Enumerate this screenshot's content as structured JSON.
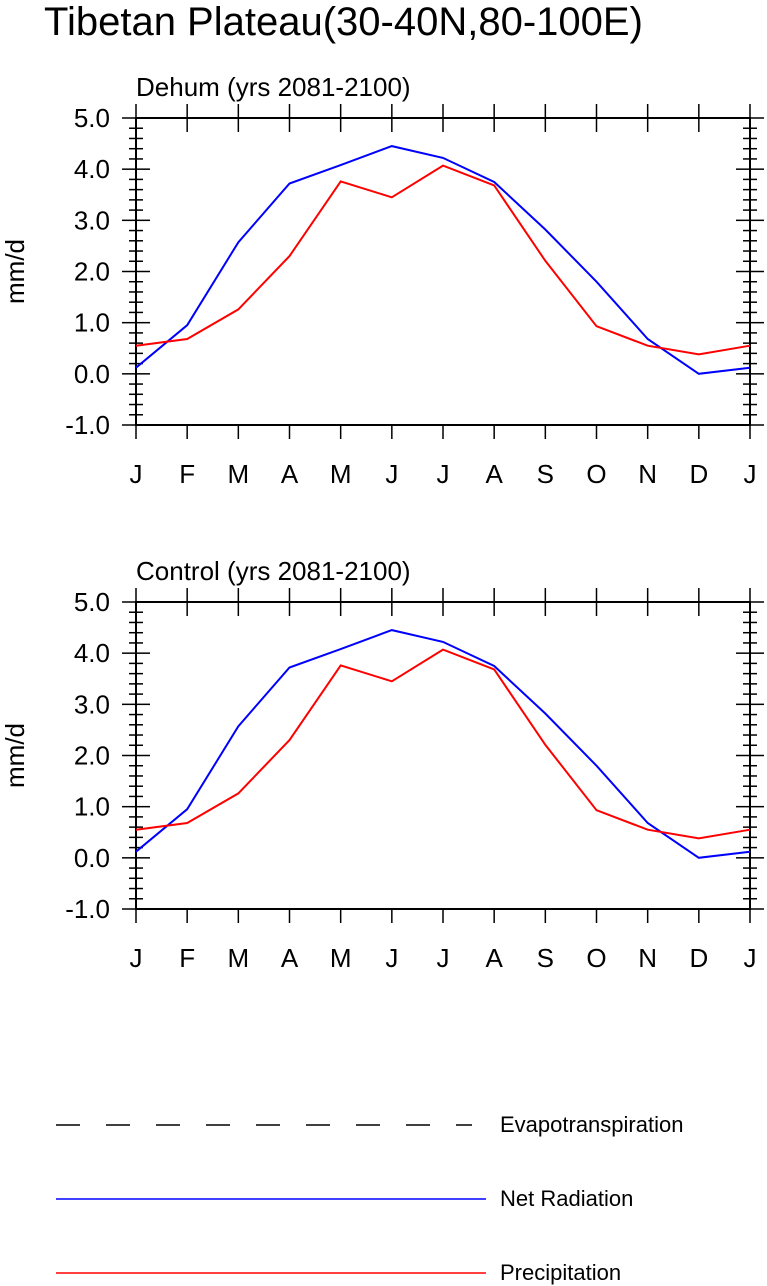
{
  "title": "Tibetan Plateau(30-40N,80-100E)",
  "colors": {
    "net_radiation": "#0000ff",
    "precipitation": "#ff0000",
    "evapotranspiration": "#000000",
    "axis": "#000000"
  },
  "legend": {
    "items": [
      {
        "label": "Evapotranspiration",
        "style": "dashed",
        "color": "#000000"
      },
      {
        "label": "Net Radiation",
        "style": "solid",
        "color": "#0000ff"
      },
      {
        "label": "Precipitation",
        "style": "solid",
        "color": "#ff0000"
      }
    ]
  },
  "chart_data": [
    {
      "type": "line",
      "subtitle": "Dehum (yrs 2081-2100)",
      "ylabel": "mm/d",
      "ylim": [
        -1.0,
        5.0
      ],
      "yticks": [
        "-1.0",
        "0.0",
        "1.0",
        "2.0",
        "3.0",
        "4.0",
        "5.0"
      ],
      "categories": [
        "J",
        "F",
        "M",
        "A",
        "M",
        "J",
        "J",
        "A",
        "S",
        "O",
        "N",
        "D",
        "J"
      ],
      "series": [
        {
          "name": "Net Radiation",
          "color": "#0000ff",
          "values": [
            0.12,
            0.95,
            2.57,
            3.72,
            4.08,
            4.45,
            4.22,
            3.75,
            2.82,
            1.8,
            0.68,
            0.0,
            0.12
          ]
        },
        {
          "name": "Precipitation",
          "color": "#ff0000",
          "values": [
            0.55,
            0.68,
            1.26,
            2.3,
            3.76,
            3.45,
            4.07,
            3.68,
            2.21,
            0.93,
            0.55,
            0.38,
            0.55
          ]
        }
      ]
    },
    {
      "type": "line",
      "subtitle": "Control (yrs 2081-2100)",
      "ylabel": "mm/d",
      "ylim": [
        -1.0,
        5.0
      ],
      "yticks": [
        "-1.0",
        "0.0",
        "1.0",
        "2.0",
        "3.0",
        "4.0",
        "5.0"
      ],
      "categories": [
        "J",
        "F",
        "M",
        "A",
        "M",
        "J",
        "J",
        "A",
        "S",
        "O",
        "N",
        "D",
        "J"
      ],
      "series": [
        {
          "name": "Net Radiation",
          "color": "#0000ff",
          "values": [
            0.12,
            0.95,
            2.57,
            3.72,
            4.08,
            4.45,
            4.22,
            3.75,
            2.82,
            1.8,
            0.68,
            0.0,
            0.12
          ]
        },
        {
          "name": "Precipitation",
          "color": "#ff0000",
          "values": [
            0.55,
            0.68,
            1.26,
            2.3,
            3.76,
            3.45,
            4.07,
            3.68,
            2.21,
            0.93,
            0.55,
            0.38,
            0.55
          ]
        }
      ]
    }
  ]
}
